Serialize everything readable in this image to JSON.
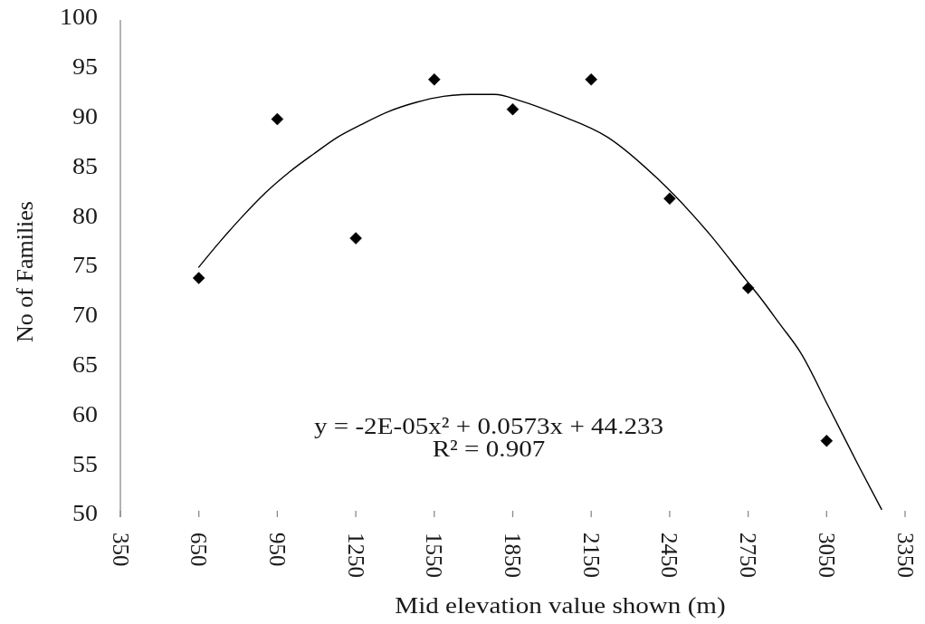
{
  "chart_data": {
    "type": "scatter",
    "xlabel": "Mid elevation value shown (m)",
    "ylabel": "No of Families",
    "x": [
      650,
      950,
      1250,
      1550,
      1850,
      2150,
      2450,
      2750,
      3050
    ],
    "marker": "diamond",
    "series": [
      {
        "type": "scatter",
        "color": "#000000",
        "values": [
          74,
          90,
          78,
          94,
          91,
          94,
          82,
          73,
          57.6
        ]
      },
      {
        "type": "line",
        "color": "#000000",
        "marker": "none",
        "x": [
          650,
          732,
          813,
          905,
          997,
          1089,
          1181,
          1274,
          1378,
          1481,
          1585,
          1689,
          1781,
          1885,
          2020,
          2212,
          2404,
          2600,
          2742,
          2800,
          2870,
          2950,
          3060,
          3170,
          3260
        ],
        "values": [
          75.1,
          77.7,
          80.1,
          82.6,
          84.7,
          86.5,
          88.2,
          89.5,
          90.8,
          91.7,
          92.3,
          92.5,
          92.5,
          91.8,
          90.5,
          88.2,
          84,
          78.5,
          73.8,
          71.9,
          69.4,
          66.5,
          60.9,
          55.2,
          50.7
        ]
      }
    ],
    "xlim": [
      350,
      3350
    ],
    "xticks": [
      350,
      650,
      950,
      1250,
      1550,
      1850,
      2150,
      2450,
      2750,
      3050,
      3350
    ],
    "ylim": [
      50,
      100
    ],
    "yticks": [
      50,
      55,
      60,
      65,
      70,
      75,
      80,
      85,
      90,
      95,
      100
    ],
    "annotations": [
      "y = -2E-05x² + 0.0573x + 44.233",
      "R² = 0.907"
    ]
  }
}
